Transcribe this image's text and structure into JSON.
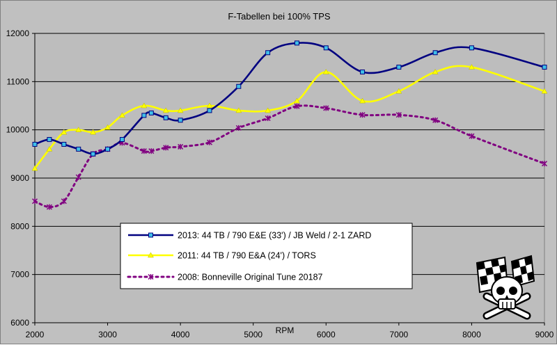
{
  "chart_data": {
    "type": "line",
    "title": "F-Tabellen bei 100% TPS",
    "xlabel": "RPM",
    "ylabel": "",
    "xlim": [
      2000,
      9000
    ],
    "ylim": [
      6000,
      12000
    ],
    "x_ticks": [
      2000,
      3000,
      4000,
      5000,
      6000,
      7000,
      8000,
      9000
    ],
    "y_ticks": [
      6000,
      7000,
      8000,
      9000,
      10000,
      11000,
      12000
    ],
    "grid": "horizontal",
    "legend_position": "lower-center",
    "plot_background": "#bdbdbd",
    "series": [
      {
        "name": "2013: 44 TB / 790 E&E (33') / JB Weld / 2-1 ZARD",
        "color": "#000080",
        "marker": "square",
        "marker_color": "#3fbfe8",
        "style": "solid",
        "x": [
          2000,
          2200,
          2400,
          2600,
          2800,
          3000,
          3200,
          3500,
          3600,
          3800,
          4000,
          4400,
          4800,
          5200,
          5600,
          6000,
          6500,
          7000,
          7500,
          8000,
          9000
        ],
        "y": [
          9700,
          9800,
          9700,
          9600,
          9500,
          9600,
          9800,
          10300,
          10350,
          10250,
          10200,
          10400,
          10900,
          11600,
          11800,
          11700,
          11200,
          11300,
          11600,
          11700,
          11300
        ]
      },
      {
        "name": "2011: 44 TB / 790 E&A (24') / TORS",
        "color": "#ffff00",
        "marker": "triangle",
        "marker_color": "#ffff00",
        "style": "solid",
        "x": [
          2000,
          2200,
          2400,
          2600,
          2800,
          3000,
          3200,
          3500,
          3800,
          4000,
          4400,
          4800,
          5200,
          5600,
          6000,
          6500,
          7000,
          7500,
          8000,
          9000
        ],
        "y": [
          9200,
          9600,
          9950,
          10000,
          9950,
          10050,
          10300,
          10500,
          10400,
          10400,
          10500,
          10400,
          10400,
          10600,
          11200,
          10600,
          10800,
          11200,
          11300,
          10800
        ]
      },
      {
        "name": "2008: Bonneville Original Tune 20187",
        "color": "#800080",
        "marker": "star",
        "marker_color": "#800080",
        "style": "dotted",
        "x": [
          2000,
          2200,
          2400,
          2600,
          2800,
          3000,
          3200,
          3500,
          3600,
          3800,
          4000,
          4400,
          4800,
          5200,
          5600,
          6000,
          6500,
          7000,
          7500,
          8000,
          9000
        ],
        "y": [
          8520,
          8400,
          8520,
          9020,
          9500,
          9600,
          9730,
          9560,
          9560,
          9630,
          9650,
          9740,
          10040,
          10240,
          10490,
          10450,
          10310,
          10310,
          10200,
          9870,
          9300
        ]
      }
    ]
  }
}
